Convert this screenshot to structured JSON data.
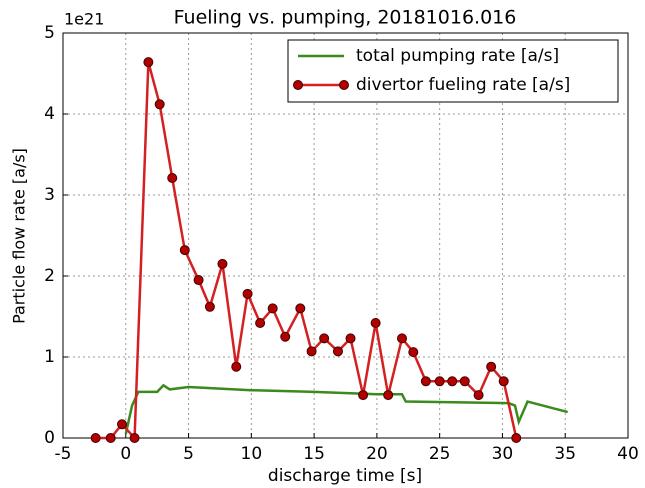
{
  "chart_data": {
    "type": "line",
    "title": "Fueling vs. pumping, 20181016.016",
    "y_offset_label": "1e21",
    "x_label": "discharge time [s]",
    "y_label": "Particle flow rate [a/s]",
    "xlim": [
      -5,
      40
    ],
    "xticks": [
      -5,
      0,
      5,
      10,
      15,
      20,
      25,
      30,
      35,
      40
    ],
    "ylim": [
      0,
      5
    ],
    "yticks": [
      0,
      1,
      2,
      3,
      4,
      5
    ],
    "grid": true,
    "legend": "upper right",
    "series": [
      {
        "name": "total pumping rate [a/s]",
        "color": "#3a8a1e",
        "markers": false,
        "x": [
          0,
          0.5,
          1,
          2.5,
          3,
          3.5,
          5,
          10,
          15,
          20,
          22,
          22.3,
          30.5,
          31,
          31.3,
          32,
          35.2
        ],
        "values": [
          0.05,
          0.4,
          0.57,
          0.57,
          0.65,
          0.6,
          0.63,
          0.59,
          0.57,
          0.54,
          0.54,
          0.45,
          0.43,
          0.4,
          0.2,
          0.45,
          0.32
        ]
      },
      {
        "name": "divertor fueling rate [a/s]",
        "color": "#d42020",
        "markers": true,
        "x": [
          -2.4,
          -1.2,
          -0.3,
          0.7,
          1.8,
          2.7,
          3.7,
          4.7,
          5.8,
          6.7,
          7.7,
          8.8,
          9.7,
          10.7,
          11.7,
          12.7,
          13.9,
          14.8,
          15.8,
          16.9,
          17.9,
          18.9,
          19.9,
          20.9,
          22.0,
          22.9,
          23.9,
          25.0,
          26.0,
          27.0,
          28.1,
          29.1,
          30.1,
          31.1
        ],
        "values": [
          0,
          0,
          0.17,
          0,
          4.64,
          4.12,
          3.21,
          2.32,
          1.95,
          1.62,
          2.15,
          0.88,
          1.78,
          1.42,
          1.6,
          1.25,
          1.6,
          1.07,
          1.23,
          1.07,
          1.23,
          0.53,
          1.42,
          0.53,
          1.23,
          1.06,
          0.7,
          0.7,
          0.7,
          0.7,
          0.53,
          0.88,
          0.7,
          0
        ]
      }
    ]
  }
}
